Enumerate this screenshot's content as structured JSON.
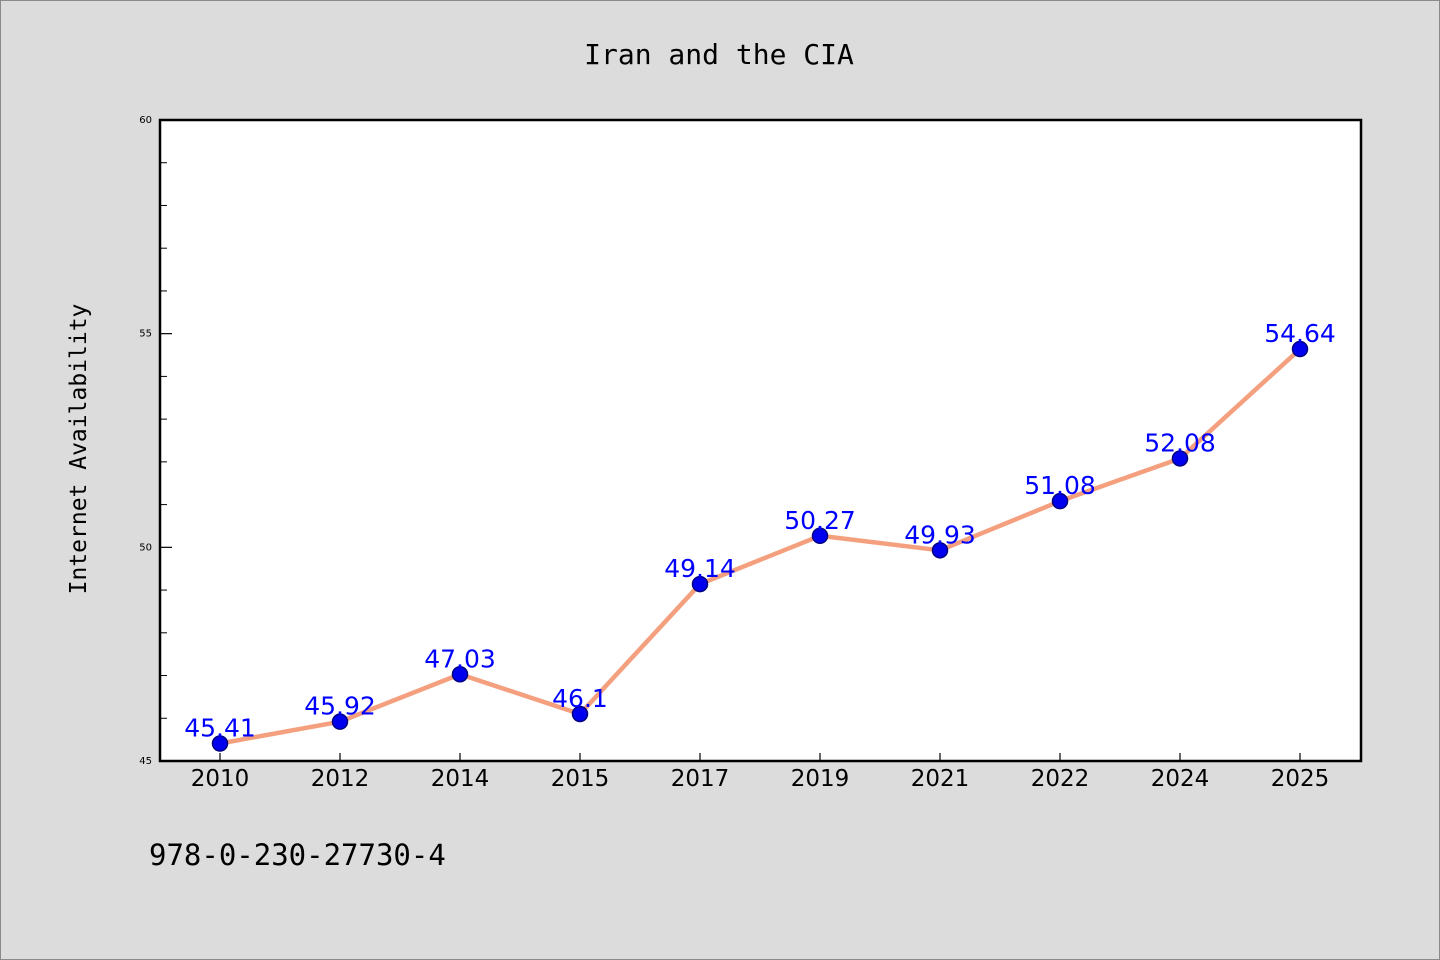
{
  "chart_data": {
    "type": "line",
    "title": "Iran and the CIA",
    "xlabel": "",
    "ylabel": "Internet Availability",
    "categories": [
      "2010",
      "2012",
      "2014",
      "2015",
      "2017",
      "2019",
      "2021",
      "2022",
      "2024",
      "2025"
    ],
    "series": [
      {
        "values": [
          45.41,
          45.92,
          47.03,
          46.1,
          49.14,
          50.27,
          49.93,
          51.08,
          52.08,
          54.64
        ]
      }
    ],
    "data_labels": [
      "45.41",
      "45.92",
      "47.03",
      "46.1",
      "49.14",
      "50.27",
      "49.93",
      "51.08",
      "52.08",
      "54.64"
    ],
    "ylim": [
      45,
      60
    ],
    "yticks_major": [
      45,
      50,
      55,
      60
    ],
    "yticks_minor": [
      46,
      47,
      48,
      49,
      51,
      52,
      53,
      54,
      56,
      57,
      58,
      59
    ],
    "grid": false,
    "legend": "none",
    "colors": {
      "line": "#f4a07e",
      "marker_fill": "#0000ee",
      "marker_edge": "#000080",
      "data_label": "#0000ff",
      "plot_background": "#ffffff",
      "figure_background": "#dcdcdc"
    }
  },
  "footnote": "978-0-230-27730-4"
}
